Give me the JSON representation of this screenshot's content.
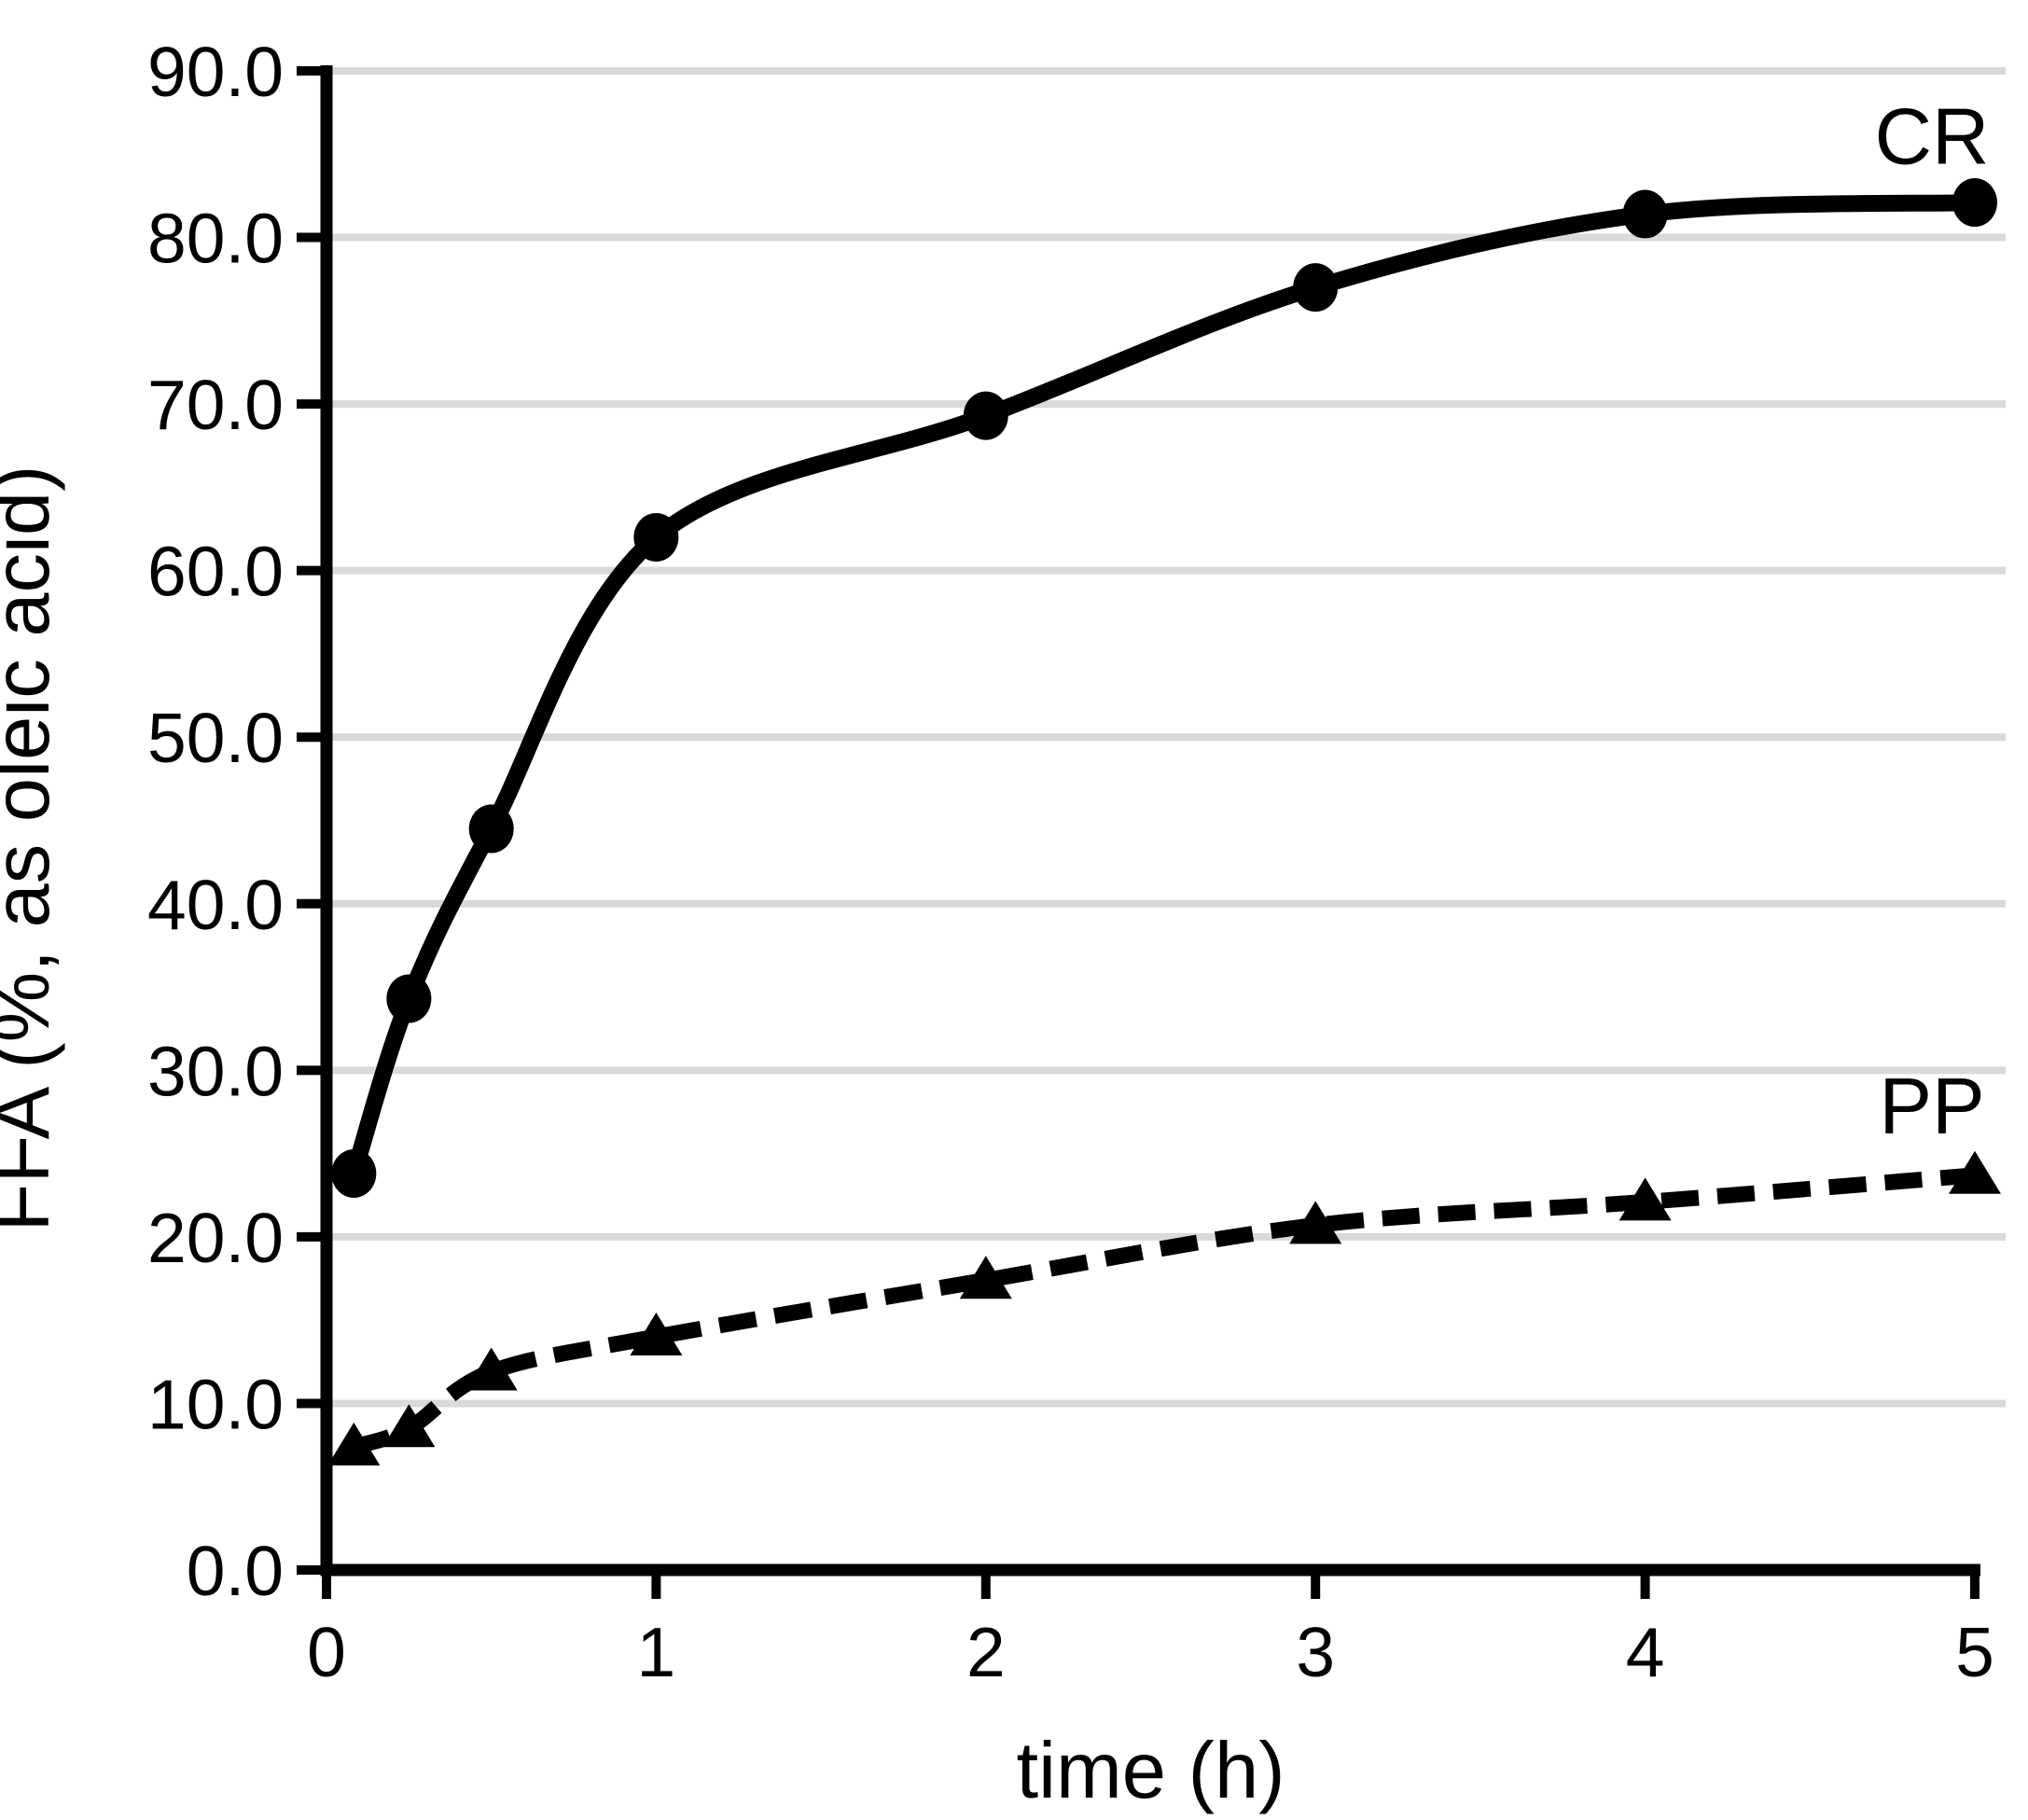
{
  "chart_data": {
    "type": "line",
    "title": "",
    "xlabel": "time (h)",
    "ylabel": "FFA (%, as oleic acid)",
    "xlim": [
      0,
      5
    ],
    "ylim": [
      0,
      90
    ],
    "x_ticks": [
      "0",
      "1",
      "2",
      "3",
      "4",
      "5"
    ],
    "y_ticks": [
      "0.0",
      "10.0",
      "20.0",
      "30.0",
      "40.0",
      "50.0",
      "60.0",
      "70.0",
      "80.0",
      "90.0"
    ],
    "grid": "horizontal",
    "legend_position": "inline-end-labels",
    "x": [
      0.083,
      0.25,
      0.5,
      1,
      2,
      3,
      4,
      5
    ],
    "series": [
      {
        "name": "CR",
        "marker": "circle",
        "line_style": "solid",
        "values": [
          23.8,
          34.3,
          44.5,
          62.0,
          69.3,
          77.0,
          81.4,
          82.1
        ],
        "label": {
          "t": 4.87,
          "v": 86.1
        }
      },
      {
        "name": "PP",
        "marker": "triangle",
        "line_style": "dashed",
        "values": [
          7.4,
          8.5,
          11.9,
          14.0,
          17.4,
          20.7,
          22.1,
          23.7
        ],
        "label": {
          "t": 4.87,
          "v": 27.9
        }
      }
    ],
    "colors": {
      "line": "#000000",
      "grid": "#d9d9d9",
      "text": "#000000",
      "background": "#ffffff"
    }
  }
}
